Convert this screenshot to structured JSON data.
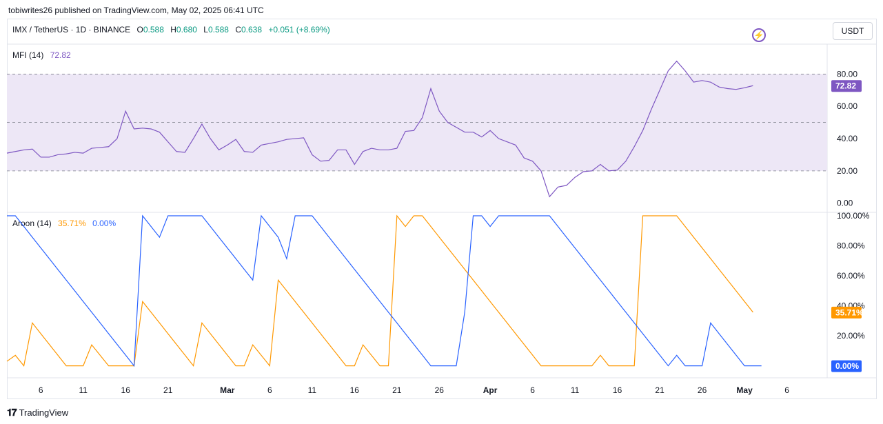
{
  "header": {
    "published": "tobiwrites26 published on TradingView.com, May 02, 2025 06:41 UTC",
    "symbol": "IMX / TetherUS · 1D · BINANCE",
    "ohlc": [
      {
        "k": "O",
        "v": "0.588"
      },
      {
        "k": "H",
        "v": "0.680"
      },
      {
        "k": "L",
        "v": "0.588"
      },
      {
        "k": "C",
        "v": "0.638"
      }
    ],
    "change": "+0.051 (+8.69%)",
    "currency": "USDT",
    "bolt_icon": "⚡"
  },
  "footer": {
    "logo_mark": "𝟏𝟕",
    "brand": "TradingView"
  },
  "colors": {
    "mfi": "#7e57c2",
    "aroon_up": "#ff9800",
    "aroon_down": "#2962ff",
    "band": "#ede7f6",
    "up": "#089981"
  },
  "chart_data": [
    {
      "type": "line",
      "title": "MFI (14)",
      "last_value": "72.82",
      "y_ticks": [
        "80.00",
        "60.00",
        "40.00",
        "20.00",
        "0.00"
      ],
      "ylim": [
        -4,
        96
      ],
      "bands": [
        20,
        50,
        80
      ],
      "x_tick_labels": [
        "6",
        "11",
        "16",
        "21",
        "Mar",
        "6",
        "11",
        "16",
        "21",
        "26",
        "Apr",
        "6",
        "11",
        "16",
        "21",
        "26",
        "May",
        "6"
      ],
      "x_tick_index": [
        4,
        9,
        14,
        19,
        26,
        31,
        36,
        41,
        46,
        51,
        57,
        62,
        67,
        72,
        77,
        82,
        87,
        92
      ],
      "series": [
        {
          "values": [
            31,
            32,
            33,
            33.5,
            28.5,
            28.5,
            30,
            30.5,
            31.5,
            31,
            34,
            34.5,
            35,
            40,
            57,
            46,
            46.5,
            46,
            44,
            38,
            32,
            31.5,
            40,
            49,
            40,
            33,
            36,
            39.5,
            32,
            31.5,
            36,
            37,
            38,
            39.5,
            40,
            40.5,
            30,
            26,
            26.5,
            33,
            33,
            24,
            32,
            34,
            33,
            33,
            34,
            44.5,
            45,
            53,
            71,
            57,
            50,
            47,
            44,
            44,
            41,
            45,
            40,
            38,
            36,
            28,
            26,
            20,
            4,
            10,
            11,
            16,
            19.5,
            20,
            24,
            20,
            20.5,
            26,
            35,
            45,
            58,
            70,
            82,
            88,
            82,
            75,
            76,
            75,
            72,
            71,
            70.5,
            71.5,
            72.82
          ]
        }
      ]
    },
    {
      "type": "line",
      "title": "Aroon (14)",
      "ylim": [
        -8,
        100
      ],
      "y_ticks": [
        "100.00%",
        "80.00%",
        "60.00%",
        "40.00%",
        "20.00%"
      ],
      "x_tick_labels": [
        "6",
        "11",
        "16",
        "21",
        "Mar",
        "6",
        "11",
        "16",
        "21",
        "26",
        "Apr",
        "6",
        "11",
        "16",
        "21",
        "26",
        "May",
        "6"
      ],
      "x_tick_index": [
        4,
        9,
        14,
        19,
        26,
        31,
        36,
        41,
        46,
        51,
        57,
        62,
        67,
        72,
        77,
        82,
        87,
        92
      ],
      "series": [
        {
          "name": "35.71%",
          "values": [
            3,
            7,
            0,
            28.57,
            21.43,
            14.29,
            7.14,
            0,
            0,
            0,
            14,
            7,
            0,
            0,
            0,
            0,
            42.86,
            35.71,
            28.57,
            21.43,
            14.29,
            7.14,
            0,
            28.57,
            21.43,
            14.29,
            7.14,
            0,
            0,
            14,
            7,
            0,
            57.14,
            50,
            42.86,
            35.71,
            28.57,
            21.43,
            14.29,
            7.14,
            0,
            0,
            14,
            7,
            0,
            0,
            100,
            92.86,
            100,
            100,
            92.86,
            85.71,
            78.57,
            71.43,
            64.29,
            57.14,
            50,
            42.86,
            35.71,
            28.57,
            21.43,
            14.29,
            7.14,
            0,
            0,
            0,
            0,
            0,
            0,
            0,
            7,
            0,
            0,
            0,
            0,
            100,
            100,
            100,
            100,
            100,
            92.86,
            85.71,
            78.57,
            71.43,
            64.29,
            57.14,
            50,
            42.86,
            35.71
          ]
        },
        {
          "name": "0.00%",
          "values": [
            100,
            100,
            92.86,
            85.71,
            78.57,
            71.43,
            64.29,
            57.14,
            50,
            42.86,
            35.71,
            28.57,
            21.43,
            14.29,
            7.14,
            0,
            100,
            92.86,
            85.71,
            100,
            100,
            100,
            100,
            100,
            92.86,
            85.71,
            78.57,
            71.43,
            64.29,
            57.14,
            100,
            92.86,
            85.71,
            71.43,
            100,
            100,
            100,
            92.86,
            85.71,
            78.57,
            71.43,
            64.29,
            57.14,
            50,
            42.86,
            35.71,
            28.57,
            21.43,
            14.29,
            7.14,
            0,
            0,
            0,
            0,
            35.71,
            100,
            100,
            92.86,
            100,
            100,
            100,
            100,
            100,
            100,
            100,
            92.86,
            85.71,
            78.57,
            71.43,
            64.29,
            57.14,
            50,
            42.86,
            35.71,
            28.57,
            21.43,
            14.29,
            7.14,
            0,
            7,
            0,
            0,
            0,
            28.57,
            21.43,
            14.29,
            7.14,
            0,
            0,
            0
          ]
        }
      ]
    }
  ]
}
